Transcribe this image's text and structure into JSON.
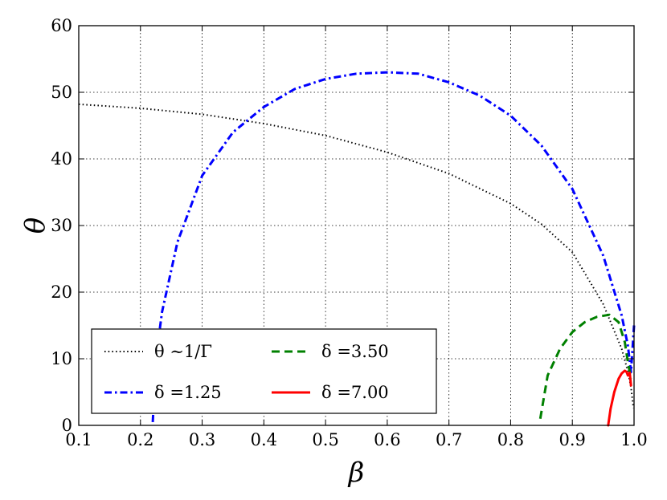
{
  "chart_data": {
    "type": "line",
    "xlabel": "β",
    "ylabel": "θ",
    "xlim": [
      0.1,
      1.0
    ],
    "ylim": [
      0,
      60
    ],
    "x_ticks": [
      "0.1",
      "0.2",
      "0.3",
      "0.4",
      "0.5",
      "0.6",
      "0.7",
      "0.8",
      "0.9",
      "1.0"
    ],
    "y_ticks": [
      "0",
      "10",
      "20",
      "30",
      "40",
      "50",
      "60"
    ],
    "grid": true,
    "legend": {
      "placement": "lower-left",
      "columns": 2
    },
    "series": [
      {
        "name": "θ ∼1/Γ",
        "color": "#000000",
        "style": "dotted",
        "x": [
          0.1,
          0.2,
          0.3,
          0.4,
          0.5,
          0.6,
          0.7,
          0.8,
          0.85,
          0.9,
          0.95,
          0.98,
          0.99,
          0.995,
          0.999
        ],
        "y": [
          48.2,
          47.6,
          46.7,
          45.3,
          43.5,
          41.0,
          37.8,
          33.3,
          30.2,
          26.0,
          18.2,
          11.5,
          8.1,
          5.7,
          2.6
        ]
      },
      {
        "name": "δ =1.25",
        "color": "#0000ff",
        "style": "dashdot",
        "x": [
          0.22,
          0.225,
          0.235,
          0.26,
          0.3,
          0.35,
          0.4,
          0.45,
          0.5,
          0.55,
          0.6,
          0.65,
          0.7,
          0.75,
          0.8,
          0.85,
          0.9,
          0.95,
          0.98,
          0.99,
          0.995,
          1.0
        ],
        "y": [
          0.5,
          10.0,
          17.0,
          27.5,
          37.5,
          44.0,
          47.8,
          50.5,
          52.0,
          52.8,
          53.0,
          52.8,
          51.5,
          49.5,
          46.5,
          42.0,
          35.5,
          25.5,
          16.5,
          12.0,
          8.0,
          15.0
        ]
      },
      {
        "name": "δ =3.50",
        "color": "#008000",
        "style": "dashed",
        "x": [
          0.848,
          0.86,
          0.88,
          0.9,
          0.92,
          0.94,
          0.96,
          0.975,
          0.985,
          0.99,
          0.995
        ],
        "y": [
          1.0,
          7.5,
          11.5,
          14.0,
          15.5,
          16.3,
          16.6,
          15.5,
          12.5,
          9.5,
          7.0
        ]
      },
      {
        "name": "δ =7.00",
        "color": "#ff0000",
        "style": "solid",
        "x": [
          0.958,
          0.962,
          0.968,
          0.975,
          0.98,
          0.985,
          0.988,
          0.99,
          0.993,
          0.995
        ],
        "y": [
          0.0,
          2.5,
          5.0,
          7.0,
          7.8,
          8.2,
          8.0,
          7.5,
          7.9,
          6.0
        ]
      }
    ]
  }
}
